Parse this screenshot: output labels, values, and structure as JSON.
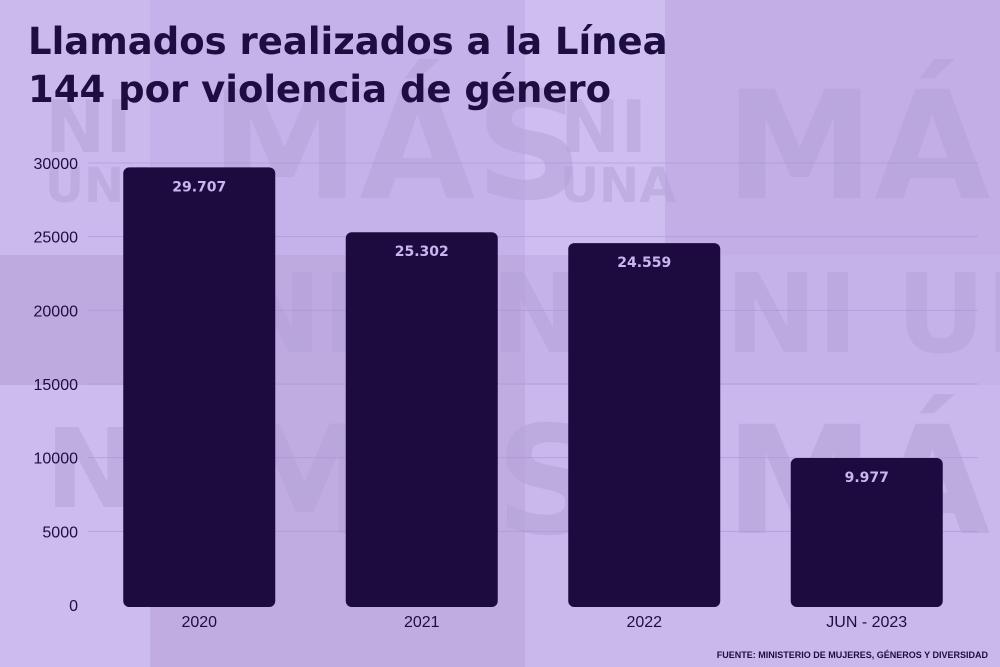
{
  "title_line1": "Llamados realizados a la Línea",
  "title_line2": "144 por violencia de género",
  "watermark": {
    "ni": "NI",
    "una": "UNA",
    "mas": "MÁS",
    "ni_una": "NI UNA"
  },
  "source": "FUENTE:  MINISTERIO DE MUJERES, GÉNEROS Y DIVERSIDAD",
  "colors": {
    "bar": "#1d0b40",
    "bar_label": "#c9b6ef",
    "text": "#1d0d40",
    "background": "#cdbcee"
  },
  "chart_data": {
    "type": "bar",
    "title": "Llamados realizados a la Línea 144 por violencia de género",
    "categories": [
      "2020",
      "2021",
      "2022",
      "JUN - 2023"
    ],
    "values": [
      29707,
      25302,
      24559,
      9977
    ],
    "value_labels": [
      "29.707",
      "25.302",
      "24.559",
      "9.977"
    ],
    "y_ticks": [
      0,
      5000,
      10000,
      15000,
      20000,
      25000,
      30000
    ],
    "ylim": [
      0,
      30000
    ],
    "xlabel": "",
    "ylabel": "",
    "grid": true
  }
}
